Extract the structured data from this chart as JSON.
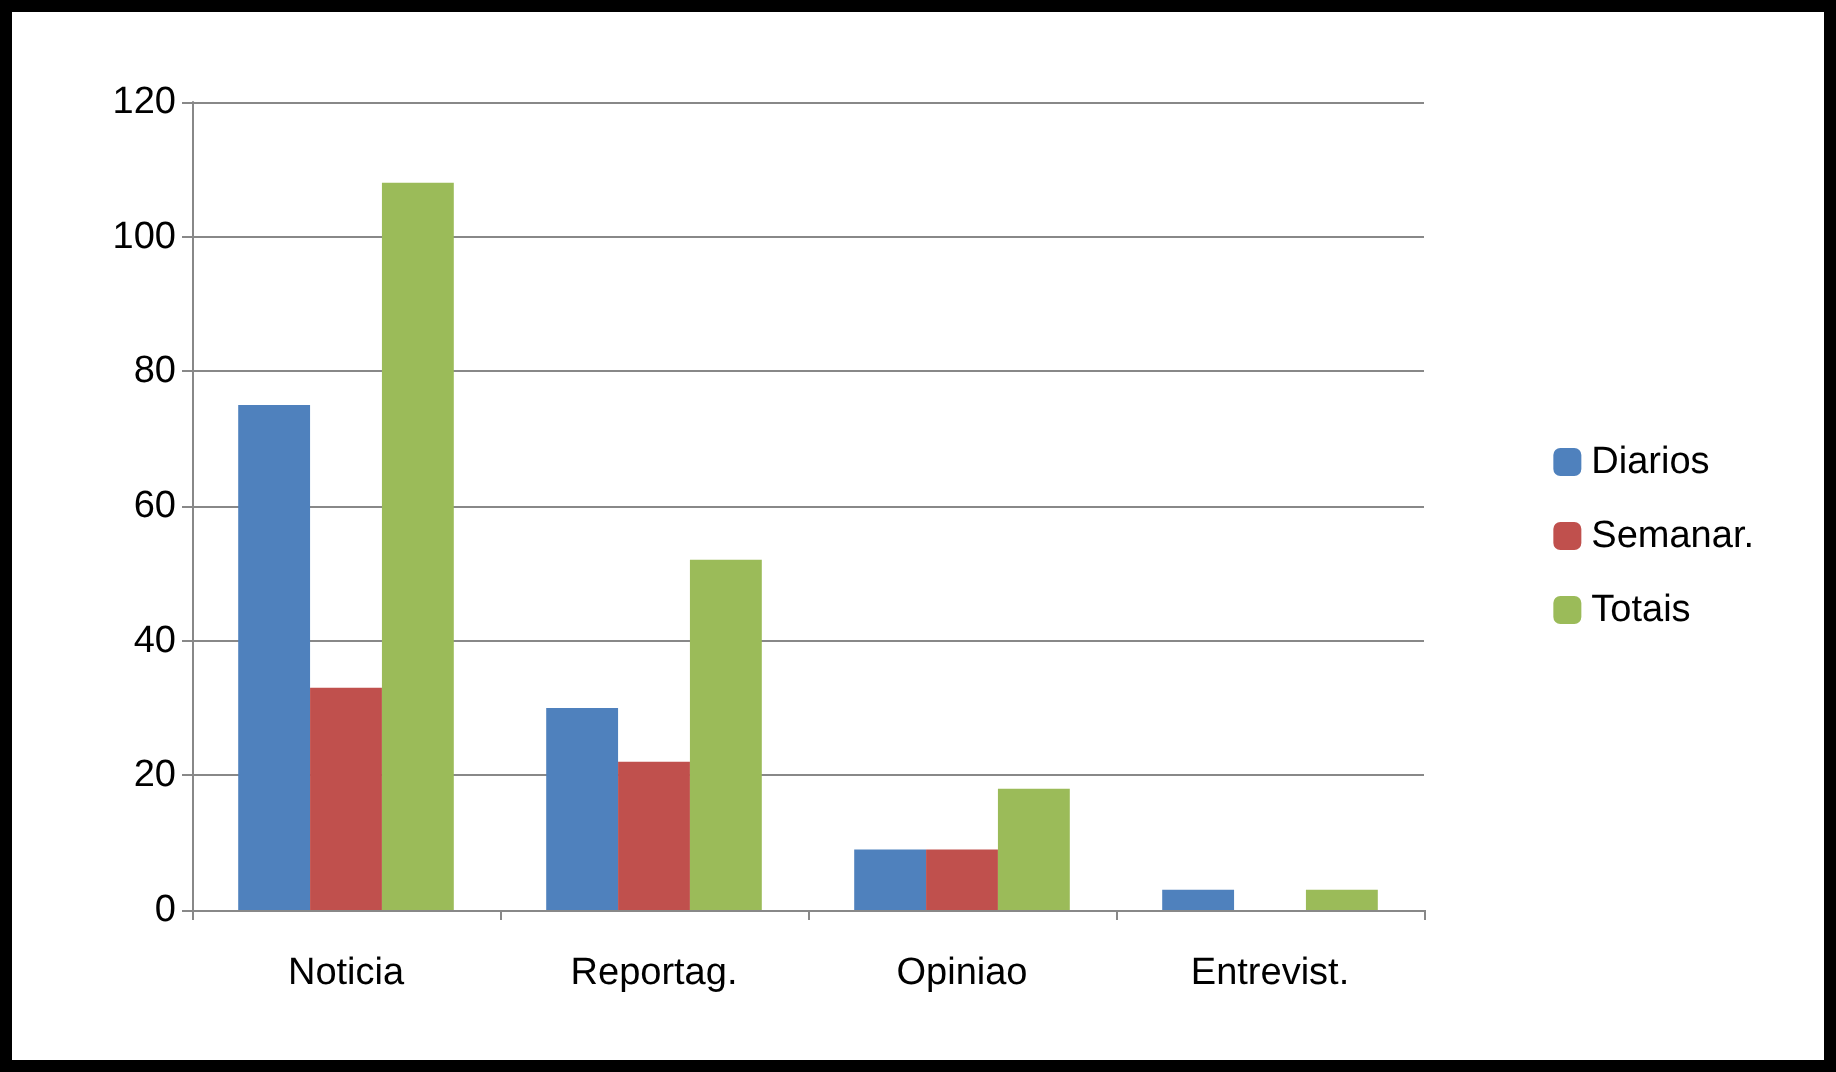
{
  "chart_data": {
    "type": "bar",
    "categories": [
      "Noticia",
      "Reportag.",
      "Opiniao",
      "Entrevist."
    ],
    "series": [
      {
        "name": "Diarios",
        "color": "#4f81bd",
        "values": [
          75,
          30,
          9,
          3
        ]
      },
      {
        "name": "Semanar.",
        "color": "#c0504d",
        "values": [
          33,
          22,
          9,
          0
        ]
      },
      {
        "name": "Totais",
        "color": "#9bbb59",
        "values": [
          108,
          52,
          18,
          3
        ]
      }
    ],
    "ylim": [
      0,
      120
    ],
    "yticks": [
      0,
      20,
      40,
      60,
      80,
      100,
      120
    ],
    "grid": true,
    "legend": "right"
  }
}
